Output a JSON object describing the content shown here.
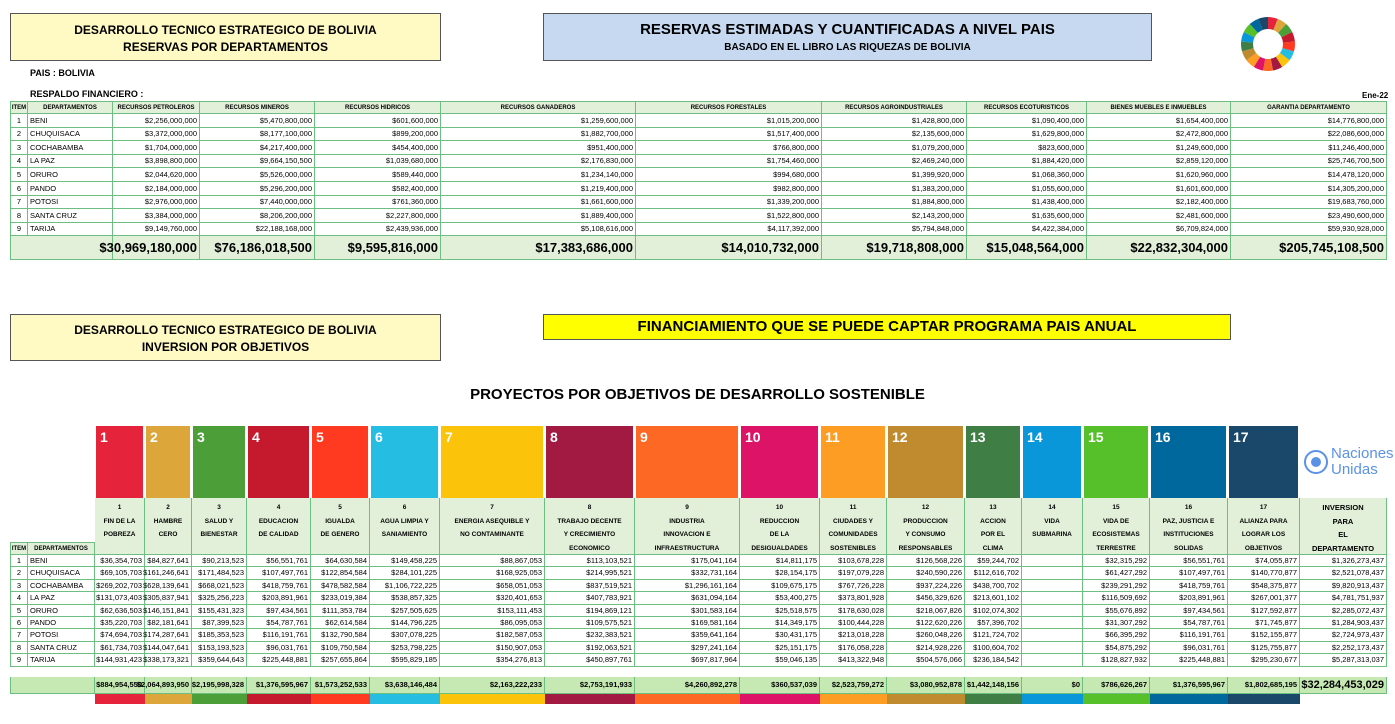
{
  "header1": {
    "line1": "DESARROLLO TECNICO ESTRATEGICO DE BOLIVIA",
    "line2": "RESERVAS POR DEPARTAMENTOS"
  },
  "header2": {
    "line1": "RESERVAS ESTIMADAS Y CUANTIFICADAS A NIVEL PAIS",
    "line2": "BASADO EN EL LIBRO LAS RIQUEZAS DE BOLIVIA"
  },
  "pais": "PAIS : BOLIVIA",
  "respaldo": "RESPALDO FINANCIERO :",
  "date": "Ene-22",
  "reservas_table": {
    "columns": [
      "ITEM",
      "DEPARTAMENTOS",
      "RECURSOS PETROLEROS",
      "RECURSOS MINEROS",
      "RECURSOS HIDRICOS",
      "RECURSOS GANADEROS",
      "RECURSOS FORESTALES",
      "RECURSOS AGROINDUSTRIALES",
      "RECURSOS ECOTURISTICOS",
      "BIENES MUEBLES E INMUEBLES",
      "GARANTIA DEPARTAMENTO"
    ],
    "rows": [
      {
        "item": "1",
        "dep": "BENI",
        "values": [
          "$2,256,000,000",
          "$5,470,800,000",
          "$601,600,000",
          "$1,259,600,000",
          "$1,015,200,000",
          "$1,428,800,000",
          "$1,090,400,000",
          "$1,654,400,000",
          "$14,776,800,000"
        ]
      },
      {
        "item": "2",
        "dep": "CHUQUISACA",
        "values": [
          "$3,372,000,000",
          "$8,177,100,000",
          "$899,200,000",
          "$1,882,700,000",
          "$1,517,400,000",
          "$2,135,600,000",
          "$1,629,800,000",
          "$2,472,800,000",
          "$22,086,600,000"
        ]
      },
      {
        "item": "3",
        "dep": "COCHABAMBA",
        "values": [
          "$1,704,000,000",
          "$4,217,400,000",
          "$454,400,000",
          "$951,400,000",
          "$766,800,000",
          "$1,079,200,000",
          "$823,600,000",
          "$1,249,600,000",
          "$11,246,400,000"
        ]
      },
      {
        "item": "4",
        "dep": "LA PAZ",
        "values": [
          "$3,898,800,000",
          "$9,664,150,500",
          "$1,039,680,000",
          "$2,176,830,000",
          "$1,754,460,000",
          "$2,469,240,000",
          "$1,884,420,000",
          "$2,859,120,000",
          "$25,746,700,500"
        ]
      },
      {
        "item": "5",
        "dep": "ORURO",
        "values": [
          "$2,044,620,000",
          "$5,526,000,000",
          "$589,440,000",
          "$1,234,140,000",
          "$994,680,000",
          "$1,399,920,000",
          "$1,068,360,000",
          "$1,620,960,000",
          "$14,478,120,000"
        ]
      },
      {
        "item": "6",
        "dep": "PANDO",
        "values": [
          "$2,184,000,000",
          "$5,296,200,000",
          "$582,400,000",
          "$1,219,400,000",
          "$982,800,000",
          "$1,383,200,000",
          "$1,055,600,000",
          "$1,601,600,000",
          "$14,305,200,000"
        ]
      },
      {
        "item": "7",
        "dep": "POTOSI",
        "values": [
          "$2,976,000,000",
          "$7,440,000,000",
          "$761,360,000",
          "$1,661,600,000",
          "$1,339,200,000",
          "$1,884,800,000",
          "$1,438,400,000",
          "$2,182,400,000",
          "$19,683,760,000"
        ]
      },
      {
        "item": "8",
        "dep": "SANTA CRUZ",
        "values": [
          "$3,384,000,000",
          "$8,206,200,000",
          "$2,227,800,000",
          "$1,889,400,000",
          "$1,522,800,000",
          "$2,143,200,000",
          "$1,635,600,000",
          "$2,481,600,000",
          "$23,490,600,000"
        ]
      },
      {
        "item": "9",
        "dep": "TARIJA",
        "values": [
          "$9,149,760,000",
          "$22,188,168,000",
          "$2,439,936,000",
          "$5,108,616,000",
          "$4,117,392,000",
          "$5,794,848,000",
          "$4,422,384,000",
          "$6,709,824,000",
          "$59,930,928,000"
        ]
      }
    ],
    "totals": [
      "$30,969,180,000",
      "$76,186,018,500",
      "$9,595,816,000",
      "$17,383,686,000",
      "$14,010,732,000",
      "$19,718,808,000",
      "$15,048,564,000",
      "$22,832,304,000",
      "$205,745,108,500"
    ]
  },
  "header3": {
    "line1": "DESARROLLO TECNICO ESTRATEGICO DE BOLIVIA",
    "line2": "INVERSION POR OBJETIVOS"
  },
  "banner": "FINANCIAMIENTO QUE SE PUEDE CAPTAR  PROGRAMA PAIS ANUAL",
  "section_title": "PROYECTOS POR OBJETIVOS DE DESARROLLO SOSTENIBLE",
  "un_logo": "Naciones Unidas",
  "objetivos_table": {
    "item_header": "ITEM",
    "dep_header": "DEPARTAMENTOS",
    "goals": [
      {
        "number": "1",
        "name": [
          "FIN DE LA",
          "POBREZA"
        ],
        "color": "#e5243b"
      },
      {
        "number": "2",
        "name": [
          "HAMBRE",
          "CERO"
        ],
        "color": "#dda63a"
      },
      {
        "number": "3",
        "name": [
          "SALUD Y",
          "BIENESTAR"
        ],
        "color": "#4c9f38"
      },
      {
        "number": "4",
        "name": [
          "EDUCACION",
          "DE CALIDAD"
        ],
        "color": "#c5192d"
      },
      {
        "number": "5",
        "name": [
          "IGUALDA",
          "DE GENERO"
        ],
        "color": "#ff3a21"
      },
      {
        "number": "6",
        "name": [
          "AGUA LIMPIA Y",
          "SANIAMIENTO"
        ],
        "color": "#26bde2"
      },
      {
        "number": "7",
        "name": [
          "ENERGIA ASEQUIBLE Y",
          "NO CONTAMINANTE"
        ],
        "color": "#fcc30b"
      },
      {
        "number": "8",
        "name": [
          "TRABAJO DECENTE",
          "Y CRECIMIENTO",
          "ECONOMICO"
        ],
        "color": "#a21942"
      },
      {
        "number": "9",
        "name": [
          "INDUSTRIA",
          "INNOVACION E",
          "INFRAESTRUCTURA"
        ],
        "color": "#fd6925"
      },
      {
        "number": "10",
        "name": [
          "REDUCCION",
          "DE LA",
          "DESIGUALDADES"
        ],
        "color": "#dd1367"
      },
      {
        "number": "11",
        "name": [
          "CIUDADES Y",
          "COMUNIDADES",
          "SOSTENIBLES"
        ],
        "color": "#fd9d24"
      },
      {
        "number": "12",
        "name": [
          "PRODUCCION",
          "Y CONSUMO",
          "RESPONSABLES"
        ],
        "color": "#bf8b2e"
      },
      {
        "number": "13",
        "name": [
          "ACCION",
          "POR EL",
          "CLIMA"
        ],
        "color": "#3f7e44"
      },
      {
        "number": "14",
        "name": [
          "VIDA",
          "SUBMARINA"
        ],
        "color": "#0a97d9"
      },
      {
        "number": "15",
        "name": [
          "VIDA DE",
          "ECOSISTEMAS",
          "TERRESTRE"
        ],
        "color": "#56c02b"
      },
      {
        "number": "16",
        "name": [
          "PAZ, JUSTICIA E",
          "INSTITUCIONES",
          "SOLIDAS"
        ],
        "color": "#00689d"
      },
      {
        "number": "17",
        "name": [
          "ALIANZA PARA",
          "LOGRAR LOS",
          "OBJETIVOS"
        ],
        "color": "#19486a"
      }
    ],
    "total_header": [
      "INVERSION",
      "PARA",
      "EL",
      "DEPARTAMENTO"
    ],
    "rows": [
      {
        "item": "1",
        "dep": "BENI",
        "values": [
          "$36,354,703",
          "$84,827,641",
          "$90,213,523",
          "$56,551,761",
          "$64,630,584",
          "$149,458,225",
          "$88,867,053",
          "$113,103,521",
          "$175,041,164",
          "$14,811,175",
          "$103,678,228",
          "$126,568,226",
          "$59,244,702",
          null,
          "$32,315,292",
          "$56,551,761",
          "$74,055,877",
          "$1,326,273,437"
        ]
      },
      {
        "item": "2",
        "dep": "CHUQUISACA",
        "values": [
          "$69,105,703",
          "$161,246,641",
          "$171,484,523",
          "$107,497,761",
          "$122,854,584",
          "$284,101,225",
          "$168,925,053",
          "$214,995,521",
          "$332,731,164",
          "$28,154,175",
          "$197,079,228",
          "$240,590,226",
          "$112,616,702",
          null,
          "$61,427,292",
          "$107,497,761",
          "$140,770,877",
          "$2,521,078,437"
        ]
      },
      {
        "item": "3",
        "dep": "COCHABAMBA",
        "values": [
          "$269,202,703",
          "$628,139,641",
          "$668,021,523",
          "$418,759,761",
          "$478,582,584",
          "$1,106,722,225",
          "$658,051,053",
          "$837,519,521",
          "$1,296,161,164",
          "$109,675,175",
          "$767,726,228",
          "$937,224,226",
          "$438,700,702",
          null,
          "$239,291,292",
          "$418,759,761",
          "$548,375,877",
          "$9,820,913,437"
        ]
      },
      {
        "item": "4",
        "dep": "LA PAZ",
        "values": [
          "$131,073,403",
          "$305,837,941",
          "$325,256,223",
          "$203,891,961",
          "$233,019,384",
          "$538,857,325",
          "$320,401,653",
          "$407,783,921",
          "$631,094,164",
          "$53,400,275",
          "$373,801,928",
          "$456,329,626",
          "$213,601,102",
          null,
          "$116,509,692",
          "$203,891,961",
          "$267,001,377",
          "$4,781,751,937"
        ]
      },
      {
        "item": "5",
        "dep": "ORURO",
        "values": [
          "$62,636,503",
          "$146,151,841",
          "$155,431,323",
          "$97,434,561",
          "$111,353,784",
          "$257,505,625",
          "$153,111,453",
          "$194,869,121",
          "$301,583,164",
          "$25,518,575",
          "$178,630,028",
          "$218,067,826",
          "$102,074,302",
          null,
          "$55,676,892",
          "$97,434,561",
          "$127,592,877",
          "$2,285,072,437"
        ]
      },
      {
        "item": "6",
        "dep": "PANDO",
        "values": [
          "$35,220,703",
          "$82,181,641",
          "$87,399,523",
          "$54,787,761",
          "$62,614,584",
          "$144,796,225",
          "$86,095,053",
          "$109,575,521",
          "$169,581,164",
          "$14,349,175",
          "$100,444,228",
          "$122,620,226",
          "$57,396,702",
          null,
          "$31,307,292",
          "$54,787,761",
          "$71,745,877",
          "$1,284,903,437"
        ]
      },
      {
        "item": "7",
        "dep": "POTOSI",
        "values": [
          "$74,694,703",
          "$174,287,641",
          "$185,353,523",
          "$116,191,761",
          "$132,790,584",
          "$307,078,225",
          "$182,587,053",
          "$232,383,521",
          "$359,641,164",
          "$30,431,175",
          "$213,018,228",
          "$260,048,226",
          "$121,724,702",
          null,
          "$66,395,292",
          "$116,191,761",
          "$152,155,877",
          "$2,724,973,437"
        ]
      },
      {
        "item": "8",
        "dep": "SANTA CRUZ",
        "values": [
          "$61,734,703",
          "$144,047,641",
          "$153,193,523",
          "$96,031,761",
          "$109,750,584",
          "$253,798,225",
          "$150,907,053",
          "$192,063,521",
          "$297,241,164",
          "$25,151,175",
          "$176,058,228",
          "$214,928,226",
          "$100,604,702",
          null,
          "$54,875,292",
          "$96,031,761",
          "$125,755,877",
          "$2,252,173,437"
        ]
      },
      {
        "item": "9",
        "dep": "TARIJA",
        "values": [
          "$144,931,423",
          "$338,173,321",
          "$359,644,643",
          "$225,448,881",
          "$257,655,864",
          "$595,829,185",
          "$354,276,813",
          "$450,897,761",
          "$697,817,964",
          "$59,046,135",
          "$413,322,948",
          "$504,576,066",
          "$236,184,542",
          null,
          "$128,827,932",
          "$225,448,881",
          "$295,230,677",
          "$5,287,313,037"
        ]
      }
    ],
    "totals": [
      "$884,954,550",
      "$2,064,893,950",
      "$2,195,998,328",
      "$1,376,595,967",
      "$1,573,252,533",
      "$3,638,146,484",
      "$2,163,222,233",
      "$2,753,191,933",
      "$4,260,892,278",
      "$360,537,039",
      "$2,523,759,272",
      "$3,080,952,878",
      "$1,442,148,156",
      "$0",
      "$786,626,267",
      "$1,376,595,967",
      "$1,802,685,195",
      "$32,284,453,029"
    ]
  }
}
